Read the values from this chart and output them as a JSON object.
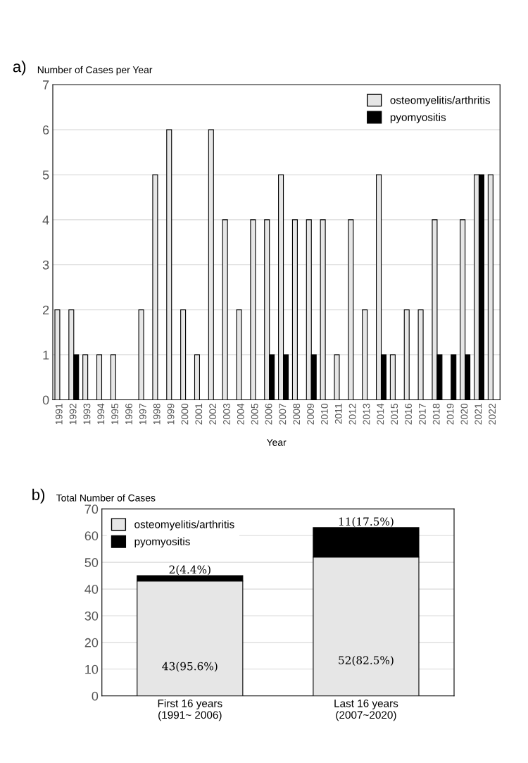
{
  "chart_data": [
    {
      "type": "bar",
      "title": "a)",
      "ylabel": "Number of Cases per Year",
      "xlabel": "Year",
      "categories": [
        "1991",
        "1992",
        "1993",
        "1994",
        "1995",
        "1996",
        "1997",
        "1998",
        "1999",
        "2000",
        "2001",
        "2002",
        "2003",
        "2004",
        "2005",
        "2006",
        "2007",
        "2008",
        "2009",
        "2010",
        "2011",
        "2012",
        "2013",
        "2014",
        "2015",
        "2016",
        "2017",
        "2018",
        "2019",
        "2020",
        "2021",
        "2022"
      ],
      "series": [
        {
          "name": "osteomyelitis/arthritis",
          "color": "#e6e6e6",
          "values": [
            2,
            2,
            1,
            1,
            1,
            0,
            2,
            5,
            6,
            2,
            1,
            6,
            4,
            2,
            4,
            4,
            5,
            4,
            4,
            4,
            1,
            4,
            2,
            5,
            1,
            2,
            2,
            4,
            0,
            4,
            5,
            5
          ]
        },
        {
          "name": "pyomyositis",
          "color": "#000000",
          "values": [
            0,
            1,
            0,
            0,
            0,
            0,
            0,
            0,
            0,
            0,
            0,
            0,
            0,
            0,
            0,
            1,
            1,
            0,
            1,
            0,
            0,
            0,
            0,
            1,
            0,
            0,
            0,
            1,
            1,
            1,
            5,
            0
          ]
        }
      ],
      "ylim": [
        0,
        7
      ],
      "yticks": [
        0,
        1,
        2,
        3,
        4,
        5,
        6,
        7
      ],
      "grid": "y",
      "legend": "top right"
    },
    {
      "type": "bar",
      "stacked": true,
      "title": "b)",
      "ylabel": "Total Number of Cases",
      "categories": [
        "First 16 years\n(1991~ 2006)",
        "Last 16 years\n(2007~2020)"
      ],
      "series": [
        {
          "name": "osteomyelitis/arthritis",
          "color": "#e6e6e6",
          "values": [
            43,
            52
          ],
          "value_labels": [
            "43(95.6%)",
            "52(82.5%)"
          ]
        },
        {
          "name": "pyomyositis",
          "color": "#000000",
          "values": [
            2,
            11
          ],
          "value_labels": [
            "2(4.4%)",
            "11(17.5%)"
          ]
        }
      ],
      "ylim": [
        0,
        70
      ],
      "yticks": [
        0,
        10,
        20,
        30,
        40,
        50,
        60,
        70
      ],
      "grid": "y",
      "legend": "top left"
    }
  ]
}
